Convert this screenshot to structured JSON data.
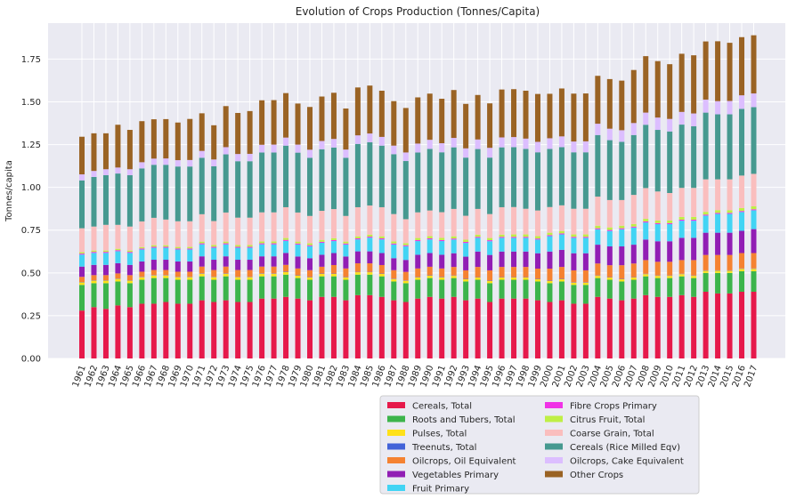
{
  "chart_data": {
    "type": "bar",
    "stacked": true,
    "title": "Evolution of Crops Production (Tonnes/Capita)",
    "xlabel": "",
    "ylabel": "Tonnes/capita",
    "ylim": [
      0,
      1.96
    ],
    "yticks": [
      "0.00",
      "0.25",
      "0.50",
      "0.75",
      "1.00",
      "1.25",
      "1.50",
      "1.75"
    ],
    "grid": true,
    "legend_position": "bottom",
    "categories": [
      "1961",
      "1962",
      "1963",
      "1964",
      "1965",
      "1966",
      "1967",
      "1968",
      "1969",
      "1970",
      "1971",
      "1972",
      "1973",
      "1974",
      "1975",
      "1976",
      "1977",
      "1978",
      "1979",
      "1980",
      "1981",
      "1982",
      "1983",
      "1984",
      "1985",
      "1986",
      "1987",
      "1988",
      "1989",
      "1990",
      "1991",
      "1992",
      "1993",
      "1994",
      "1995",
      "1996",
      "1997",
      "1998",
      "1999",
      "2000",
      "2001",
      "2002",
      "2003",
      "2004",
      "2005",
      "2006",
      "2007",
      "2008",
      "2009",
      "2010",
      "2011",
      "2012",
      "2013",
      "2014",
      "2015",
      "2016",
      "2017"
    ],
    "series": [
      {
        "name": "Cereals, Total",
        "color": "#e6194b",
        "values": [
          0.28,
          0.3,
          0.29,
          0.31,
          0.3,
          0.32,
          0.32,
          0.33,
          0.32,
          0.32,
          0.34,
          0.33,
          0.34,
          0.33,
          0.33,
          0.35,
          0.35,
          0.36,
          0.35,
          0.34,
          0.36,
          0.36,
          0.34,
          0.37,
          0.37,
          0.36,
          0.34,
          0.33,
          0.35,
          0.36,
          0.35,
          0.36,
          0.34,
          0.35,
          0.33,
          0.35,
          0.35,
          0.35,
          0.34,
          0.33,
          0.34,
          0.32,
          0.32,
          0.36,
          0.35,
          0.34,
          0.35,
          0.37,
          0.36,
          0.36,
          0.37,
          0.36,
          0.39,
          0.38,
          0.38,
          0.39,
          0.39
        ]
      },
      {
        "name": "Roots and Tubers, Total",
        "color": "#3cb44b",
        "values": [
          0.15,
          0.14,
          0.15,
          0.14,
          0.14,
          0.14,
          0.15,
          0.14,
          0.14,
          0.14,
          0.14,
          0.13,
          0.14,
          0.13,
          0.13,
          0.13,
          0.13,
          0.13,
          0.12,
          0.12,
          0.12,
          0.12,
          0.12,
          0.12,
          0.12,
          0.12,
          0.11,
          0.11,
          0.11,
          0.11,
          0.11,
          0.11,
          0.11,
          0.11,
          0.11,
          0.11,
          0.11,
          0.11,
          0.11,
          0.11,
          0.11,
          0.11,
          0.11,
          0.11,
          0.11,
          0.11,
          0.11,
          0.11,
          0.11,
          0.11,
          0.11,
          0.11,
          0.11,
          0.12,
          0.12,
          0.12,
          0.12
        ]
      },
      {
        "name": "Pulses, Total",
        "color": "#ffe119",
        "values": [
          0.015,
          0.015,
          0.015,
          0.015,
          0.015,
          0.015,
          0.015,
          0.015,
          0.015,
          0.015,
          0.015,
          0.015,
          0.015,
          0.015,
          0.015,
          0.015,
          0.015,
          0.015,
          0.014,
          0.014,
          0.014,
          0.014,
          0.014,
          0.014,
          0.014,
          0.014,
          0.014,
          0.014,
          0.014,
          0.014,
          0.014,
          0.013,
          0.013,
          0.013,
          0.013,
          0.013,
          0.013,
          0.013,
          0.013,
          0.013,
          0.013,
          0.013,
          0.013,
          0.013,
          0.013,
          0.013,
          0.013,
          0.013,
          0.013,
          0.013,
          0.013,
          0.013,
          0.013,
          0.013,
          0.013,
          0.014,
          0.014
        ]
      },
      {
        "name": "Treenuts, Total",
        "color": "#4363d8",
        "values": [
          0.002,
          0.002,
          0.002,
          0.002,
          0.002,
          0.002,
          0.002,
          0.002,
          0.002,
          0.002,
          0.002,
          0.002,
          0.002,
          0.002,
          0.002,
          0.002,
          0.002,
          0.002,
          0.002,
          0.002,
          0.002,
          0.002,
          0.002,
          0.002,
          0.002,
          0.002,
          0.002,
          0.002,
          0.002,
          0.002,
          0.002,
          0.002,
          0.002,
          0.002,
          0.002,
          0.002,
          0.002,
          0.002,
          0.002,
          0.002,
          0.002,
          0.002,
          0.002,
          0.002,
          0.002,
          0.002,
          0.002,
          0.002,
          0.002,
          0.002,
          0.002,
          0.002,
          0.002,
          0.002,
          0.002,
          0.002,
          0.002
        ]
      },
      {
        "name": "Oilcrops, Oil Equivalent",
        "color": "#f58231",
        "values": [
          0.03,
          0.03,
          0.03,
          0.03,
          0.03,
          0.03,
          0.03,
          0.03,
          0.03,
          0.03,
          0.04,
          0.04,
          0.04,
          0.04,
          0.04,
          0.04,
          0.04,
          0.04,
          0.04,
          0.04,
          0.04,
          0.05,
          0.05,
          0.05,
          0.05,
          0.05,
          0.05,
          0.05,
          0.05,
          0.05,
          0.05,
          0.05,
          0.05,
          0.06,
          0.06,
          0.06,
          0.06,
          0.06,
          0.06,
          0.07,
          0.07,
          0.07,
          0.07,
          0.07,
          0.07,
          0.08,
          0.08,
          0.08,
          0.08,
          0.08,
          0.08,
          0.09,
          0.09,
          0.09,
          0.09,
          0.09,
          0.09
        ]
      },
      {
        "name": "Vegetables Primary",
        "color": "#911eb4",
        "values": [
          0.06,
          0.06,
          0.06,
          0.06,
          0.06,
          0.06,
          0.06,
          0.06,
          0.06,
          0.06,
          0.06,
          0.06,
          0.06,
          0.06,
          0.06,
          0.06,
          0.06,
          0.07,
          0.07,
          0.07,
          0.07,
          0.07,
          0.07,
          0.07,
          0.07,
          0.07,
          0.07,
          0.07,
          0.08,
          0.08,
          0.08,
          0.08,
          0.08,
          0.09,
          0.09,
          0.09,
          0.09,
          0.09,
          0.09,
          0.1,
          0.1,
          0.1,
          0.1,
          0.11,
          0.11,
          0.11,
          0.11,
          0.12,
          0.12,
          0.12,
          0.13,
          0.13,
          0.13,
          0.13,
          0.13,
          0.13,
          0.14
        ]
      },
      {
        "name": "Fruit Primary",
        "color": "#42d4f4",
        "values": [
          0.07,
          0.07,
          0.07,
          0.07,
          0.07,
          0.07,
          0.07,
          0.07,
          0.07,
          0.07,
          0.07,
          0.07,
          0.07,
          0.07,
          0.07,
          0.07,
          0.07,
          0.07,
          0.07,
          0.07,
          0.07,
          0.07,
          0.07,
          0.07,
          0.08,
          0.08,
          0.08,
          0.08,
          0.08,
          0.08,
          0.08,
          0.08,
          0.08,
          0.08,
          0.08,
          0.08,
          0.08,
          0.08,
          0.08,
          0.09,
          0.09,
          0.09,
          0.09,
          0.09,
          0.09,
          0.1,
          0.1,
          0.1,
          0.1,
          0.1,
          0.1,
          0.1,
          0.1,
          0.11,
          0.11,
          0.11,
          0.11
        ]
      },
      {
        "name": "Fibre Crops Primary",
        "color": "#f032e6",
        "values": [
          0.006,
          0.006,
          0.006,
          0.006,
          0.006,
          0.006,
          0.006,
          0.006,
          0.006,
          0.006,
          0.006,
          0.006,
          0.006,
          0.006,
          0.006,
          0.006,
          0.006,
          0.006,
          0.006,
          0.006,
          0.006,
          0.006,
          0.006,
          0.006,
          0.006,
          0.006,
          0.006,
          0.006,
          0.006,
          0.006,
          0.006,
          0.006,
          0.006,
          0.006,
          0.006,
          0.006,
          0.006,
          0.006,
          0.006,
          0.006,
          0.006,
          0.006,
          0.006,
          0.006,
          0.006,
          0.006,
          0.006,
          0.006,
          0.006,
          0.006,
          0.006,
          0.006,
          0.006,
          0.006,
          0.006,
          0.006,
          0.006
        ]
      },
      {
        "name": "Citrus Fruit, Total",
        "color": "#bfef45",
        "values": [
          0.008,
          0.008,
          0.008,
          0.008,
          0.008,
          0.008,
          0.009,
          0.009,
          0.009,
          0.009,
          0.01,
          0.01,
          0.01,
          0.01,
          0.01,
          0.011,
          0.011,
          0.011,
          0.011,
          0.011,
          0.011,
          0.011,
          0.011,
          0.012,
          0.012,
          0.012,
          0.012,
          0.012,
          0.012,
          0.013,
          0.013,
          0.013,
          0.013,
          0.013,
          0.013,
          0.013,
          0.014,
          0.014,
          0.014,
          0.014,
          0.014,
          0.014,
          0.014,
          0.015,
          0.015,
          0.015,
          0.015,
          0.015,
          0.015,
          0.016,
          0.016,
          0.016,
          0.016,
          0.016,
          0.016,
          0.017,
          0.017
        ]
      },
      {
        "name": "Coarse Grain, Total",
        "color": "#fabebe",
        "values": [
          0.14,
          0.14,
          0.15,
          0.14,
          0.14,
          0.15,
          0.16,
          0.15,
          0.15,
          0.15,
          0.16,
          0.14,
          0.17,
          0.16,
          0.16,
          0.17,
          0.17,
          0.18,
          0.17,
          0.16,
          0.17,
          0.17,
          0.15,
          0.17,
          0.17,
          0.17,
          0.16,
          0.14,
          0.15,
          0.15,
          0.15,
          0.16,
          0.14,
          0.15,
          0.14,
          0.16,
          0.16,
          0.15,
          0.15,
          0.15,
          0.15,
          0.15,
          0.15,
          0.17,
          0.16,
          0.15,
          0.17,
          0.18,
          0.17,
          0.16,
          0.17,
          0.17,
          0.19,
          0.18,
          0.18,
          0.19,
          0.19
        ]
      },
      {
        "name": "Cereals (Rice Milled Eqv)",
        "color": "#469990",
        "values": [
          0.28,
          0.29,
          0.29,
          0.3,
          0.3,
          0.31,
          0.31,
          0.32,
          0.32,
          0.32,
          0.33,
          0.32,
          0.34,
          0.33,
          0.33,
          0.35,
          0.35,
          0.36,
          0.35,
          0.34,
          0.36,
          0.36,
          0.34,
          0.37,
          0.37,
          0.36,
          0.35,
          0.34,
          0.35,
          0.36,
          0.35,
          0.36,
          0.34,
          0.35,
          0.33,
          0.35,
          0.35,
          0.35,
          0.34,
          0.34,
          0.34,
          0.33,
          0.33,
          0.36,
          0.35,
          0.34,
          0.35,
          0.37,
          0.36,
          0.36,
          0.37,
          0.36,
          0.39,
          0.38,
          0.38,
          0.39,
          0.39
        ]
      },
      {
        "name": "Oilcrops, Cake Equivalent",
        "color": "#dcbeff",
        "values": [
          0.035,
          0.035,
          0.035,
          0.035,
          0.035,
          0.036,
          0.036,
          0.037,
          0.037,
          0.038,
          0.04,
          0.04,
          0.042,
          0.042,
          0.043,
          0.045,
          0.046,
          0.047,
          0.047,
          0.047,
          0.048,
          0.05,
          0.048,
          0.05,
          0.051,
          0.051,
          0.05,
          0.05,
          0.052,
          0.053,
          0.053,
          0.055,
          0.054,
          0.056,
          0.057,
          0.058,
          0.059,
          0.06,
          0.061,
          0.062,
          0.063,
          0.063,
          0.064,
          0.066,
          0.067,
          0.068,
          0.07,
          0.071,
          0.072,
          0.073,
          0.074,
          0.075,
          0.076,
          0.077,
          0.078,
          0.079,
          0.08
        ]
      },
      {
        "name": "Other Crops",
        "color": "#9a6324",
        "values": [
          0.22,
          0.22,
          0.21,
          0.25,
          0.23,
          0.24,
          0.23,
          0.23,
          0.22,
          0.24,
          0.22,
          0.2,
          0.24,
          0.24,
          0.25,
          0.26,
          0.26,
          0.26,
          0.24,
          0.25,
          0.26,
          0.27,
          0.24,
          0.28,
          0.28,
          0.27,
          0.26,
          0.26,
          0.27,
          0.27,
          0.26,
          0.28,
          0.26,
          0.26,
          0.26,
          0.28,
          0.28,
          0.28,
          0.28,
          0.26,
          0.28,
          0.28,
          0.28,
          0.28,
          0.29,
          0.29,
          0.31,
          0.33,
          0.33,
          0.32,
          0.34,
          0.34,
          0.34,
          0.35,
          0.34,
          0.34,
          0.34
        ]
      }
    ]
  }
}
